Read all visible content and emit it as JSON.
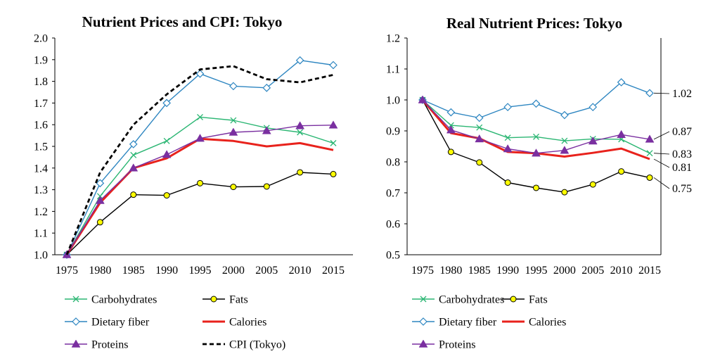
{
  "chart_data": [
    {
      "type": "line",
      "title": "Nutrient Prices and CPI: Tokyo",
      "xlabel": "",
      "ylabel": "",
      "categories": [
        "1975",
        "1980",
        "1985",
        "1990",
        "1995",
        "2000",
        "2005",
        "2010",
        "2015"
      ],
      "ylim": [
        1.0,
        2.0
      ],
      "yticks": [
        "1.0",
        "1.1",
        "1.2",
        "1.3",
        "1.4",
        "1.5",
        "1.6",
        "1.7",
        "1.8",
        "1.9",
        "2.0"
      ],
      "grid": false,
      "legend_position": "bottom",
      "series": [
        {
          "name": "Carbohydrates",
          "color": "#2bb673",
          "marker": "x",
          "values": [
            1.0,
            1.27,
            1.46,
            1.525,
            1.635,
            1.62,
            1.585,
            1.565,
            1.515
          ]
        },
        {
          "name": "Fats",
          "color": "#000000",
          "marker": "circle-yellow",
          "values": [
            1.0,
            1.15,
            1.277,
            1.274,
            1.33,
            1.313,
            1.315,
            1.38,
            1.372
          ]
        },
        {
          "name": "Dietary fiber",
          "color": "#2e86c1",
          "marker": "diamond",
          "values": [
            1.0,
            1.33,
            1.51,
            1.7,
            1.835,
            1.778,
            1.77,
            1.897,
            1.875
          ]
        },
        {
          "name": "Calories",
          "color": "#e8221c",
          "marker": "none",
          "values": [
            1.0,
            1.24,
            1.4,
            1.445,
            1.535,
            1.525,
            1.5,
            1.515,
            1.483
          ]
        },
        {
          "name": "Proteins",
          "color": "#7a2fa0",
          "marker": "triangle",
          "values": [
            1.0,
            1.25,
            1.4,
            1.462,
            1.537,
            1.565,
            1.572,
            1.595,
            1.598
          ]
        },
        {
          "name": "CPI (Tokyo)",
          "color": "#000000",
          "marker": "none",
          "dashed": true,
          "values": [
            1.0,
            1.38,
            1.6,
            1.74,
            1.855,
            1.87,
            1.81,
            1.795,
            1.83
          ]
        }
      ]
    },
    {
      "type": "line",
      "title": "Real Nutrient Prices: Tokyo",
      "xlabel": "",
      "ylabel": "",
      "categories": [
        "1975",
        "1980",
        "1985",
        "1990",
        "1995",
        "2000",
        "2005",
        "2010",
        "2015"
      ],
      "ylim": [
        0.5,
        1.2
      ],
      "yticks": [
        "0.5",
        "0.6",
        "0.7",
        "0.8",
        "0.9",
        "1.0",
        "1.1",
        "1.2"
      ],
      "grid": false,
      "legend_position": "bottom",
      "end_labels": [
        "1.02",
        "0.87",
        "0.83",
        "0.81",
        "0.75"
      ],
      "series": [
        {
          "name": "Carbohydrates",
          "color": "#2bb673",
          "marker": "x",
          "values": [
            1.0,
            0.918,
            0.911,
            0.878,
            0.881,
            0.868,
            0.874,
            0.873,
            0.828
          ]
        },
        {
          "name": "Fats",
          "color": "#000000",
          "marker": "circle-yellow",
          "values": [
            1.0,
            0.832,
            0.798,
            0.733,
            0.716,
            0.702,
            0.727,
            0.769,
            0.749
          ]
        },
        {
          "name": "Dietary fiber",
          "color": "#2e86c1",
          "marker": "diamond",
          "values": [
            1.0,
            0.96,
            0.942,
            0.977,
            0.988,
            0.951,
            0.977,
            1.057,
            1.022
          ]
        },
        {
          "name": "Calories",
          "color": "#e8221c",
          "marker": "none",
          "values": [
            1.0,
            0.893,
            0.876,
            0.832,
            0.828,
            0.817,
            0.829,
            0.843,
            0.809
          ]
        },
        {
          "name": "Proteins",
          "color": "#7a2fa0",
          "marker": "triangle",
          "values": [
            1.0,
            0.903,
            0.874,
            0.842,
            0.828,
            0.837,
            0.867,
            0.888,
            0.873
          ]
        }
      ]
    }
  ]
}
